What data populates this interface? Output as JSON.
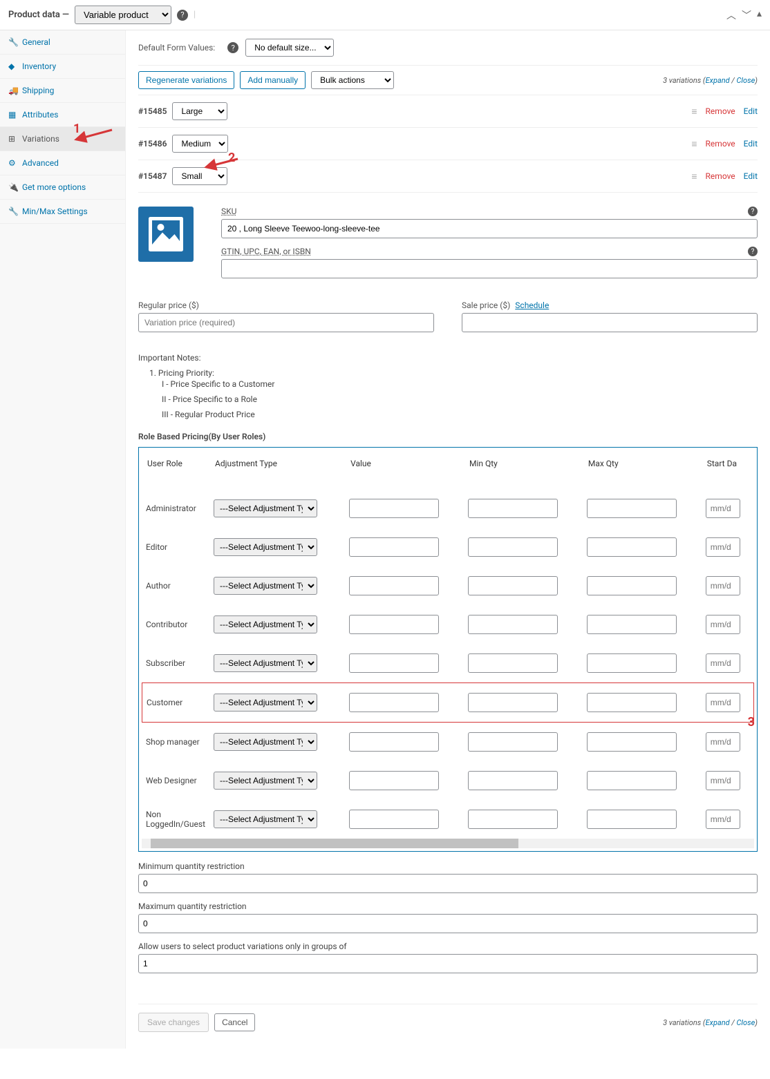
{
  "header": {
    "title": "Product data —",
    "product_type": "Variable product",
    "help": "?"
  },
  "tabs": [
    {
      "icon": "🔧",
      "label": "General",
      "id": "general"
    },
    {
      "icon": "◆",
      "label": "Inventory",
      "id": "inventory"
    },
    {
      "icon": "🚚",
      "label": "Shipping",
      "id": "shipping"
    },
    {
      "icon": "▦",
      "label": "Attributes",
      "id": "attributes"
    },
    {
      "icon": "⊞",
      "label": "Variations",
      "id": "variations",
      "active": true
    },
    {
      "icon": "⚙",
      "label": "Advanced",
      "id": "advanced"
    },
    {
      "icon": "🔌",
      "label": "Get more options",
      "id": "more"
    },
    {
      "icon": "🔧",
      "label": "Min/Max Settings",
      "id": "minmax"
    }
  ],
  "default_form": {
    "label": "Default Form Values:",
    "value": "No default size..."
  },
  "actions": {
    "regen": "Regenerate variations",
    "add": "Add manually",
    "bulk": "Bulk actions"
  },
  "variations_meta": {
    "count": "3 variations",
    "expand": "Expand",
    "close": "Close"
  },
  "variations": [
    {
      "id": "#15485",
      "size": "Large"
    },
    {
      "id": "#15486",
      "size": "Medium"
    },
    {
      "id": "#15487",
      "size": "Small",
      "expanded": true
    }
  ],
  "row_actions": {
    "remove": "Remove",
    "edit": "Edit"
  },
  "detail": {
    "sku_label": "SKU",
    "sku_value": "20 , Long Sleeve Teewoo-long-sleeve-tee",
    "gtin_label_html": "GTIN, UPC, EAN, or ISBN",
    "gtin_value": "",
    "regular_price_label": "Regular price ($)",
    "regular_price_placeholder": "Variation price (required)",
    "sale_price_label": "Sale price ($)",
    "schedule": "Schedule"
  },
  "notes": {
    "title": "Important Notes:",
    "priority_title": "1. Pricing Priority:",
    "l1": "I - Price Specific to a Customer",
    "l2": "II - Price Specific to a Role",
    "l3": "III - Regular Product Price"
  },
  "rbp": {
    "title": "Role Based Pricing(By User Roles)",
    "headers": {
      "role": "User Role",
      "adj": "Adjustment Type",
      "val": "Value",
      "min": "Min Qty",
      "max": "Max Qty",
      "start": "Start Da"
    },
    "select_placeholder": "---Select Adjustment Type---",
    "date_placeholder": "mm/d",
    "roles": [
      "Administrator",
      "Editor",
      "Author",
      "Contributor",
      "Subscriber",
      "Customer",
      "Shop manager",
      "Web Designer",
      "Non LoggedIn/Guest"
    ],
    "highlighted_role": "Customer"
  },
  "qty": {
    "min_label": "Minimum quantity restriction",
    "min_value": "0",
    "max_label": "Maximum quantity restriction",
    "max_value": "0",
    "group_label": "Allow users to select product variations only in groups of",
    "group_value": "1"
  },
  "bottom": {
    "save": "Save changes",
    "cancel": "Cancel"
  },
  "annotations": {
    "a1": "1",
    "a2": "2",
    "a3": "3"
  },
  "colors": {
    "link": "#0073aa",
    "danger": "#d63638",
    "border": "#8c8f94",
    "img_bg": "#1f6ea8"
  }
}
